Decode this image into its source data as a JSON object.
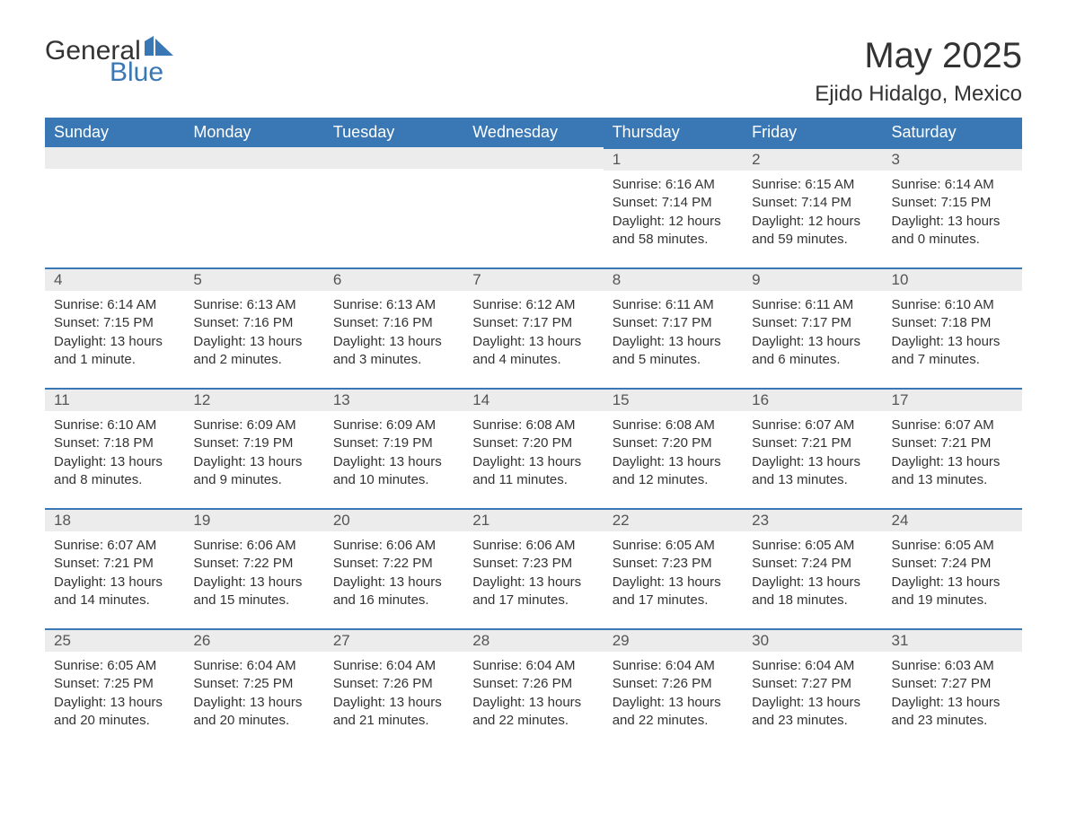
{
  "logo": {
    "text1": "General",
    "text2": "Blue",
    "flag_color": "#3a78b5"
  },
  "header": {
    "month_title": "May 2025",
    "location": "Ejido Hidalgo, Mexico"
  },
  "colors": {
    "header_bg": "#3a78b5",
    "header_text": "#ffffff",
    "daynum_bg": "#ececec",
    "border_top": "#3a78b5",
    "body_text": "#333333"
  },
  "weekdays": [
    "Sunday",
    "Monday",
    "Tuesday",
    "Wednesday",
    "Thursday",
    "Friday",
    "Saturday"
  ],
  "weeks": [
    [
      {
        "empty": true
      },
      {
        "empty": true
      },
      {
        "empty": true
      },
      {
        "empty": true
      },
      {
        "day": "1",
        "sunrise": "Sunrise: 6:16 AM",
        "sunset": "Sunset: 7:14 PM",
        "daylight1": "Daylight: 12 hours",
        "daylight2": "and 58 minutes."
      },
      {
        "day": "2",
        "sunrise": "Sunrise: 6:15 AM",
        "sunset": "Sunset: 7:14 PM",
        "daylight1": "Daylight: 12 hours",
        "daylight2": "and 59 minutes."
      },
      {
        "day": "3",
        "sunrise": "Sunrise: 6:14 AM",
        "sunset": "Sunset: 7:15 PM",
        "daylight1": "Daylight: 13 hours",
        "daylight2": "and 0 minutes."
      }
    ],
    [
      {
        "day": "4",
        "sunrise": "Sunrise: 6:14 AM",
        "sunset": "Sunset: 7:15 PM",
        "daylight1": "Daylight: 13 hours",
        "daylight2": "and 1 minute."
      },
      {
        "day": "5",
        "sunrise": "Sunrise: 6:13 AM",
        "sunset": "Sunset: 7:16 PM",
        "daylight1": "Daylight: 13 hours",
        "daylight2": "and 2 minutes."
      },
      {
        "day": "6",
        "sunrise": "Sunrise: 6:13 AM",
        "sunset": "Sunset: 7:16 PM",
        "daylight1": "Daylight: 13 hours",
        "daylight2": "and 3 minutes."
      },
      {
        "day": "7",
        "sunrise": "Sunrise: 6:12 AM",
        "sunset": "Sunset: 7:17 PM",
        "daylight1": "Daylight: 13 hours",
        "daylight2": "and 4 minutes."
      },
      {
        "day": "8",
        "sunrise": "Sunrise: 6:11 AM",
        "sunset": "Sunset: 7:17 PM",
        "daylight1": "Daylight: 13 hours",
        "daylight2": "and 5 minutes."
      },
      {
        "day": "9",
        "sunrise": "Sunrise: 6:11 AM",
        "sunset": "Sunset: 7:17 PM",
        "daylight1": "Daylight: 13 hours",
        "daylight2": "and 6 minutes."
      },
      {
        "day": "10",
        "sunrise": "Sunrise: 6:10 AM",
        "sunset": "Sunset: 7:18 PM",
        "daylight1": "Daylight: 13 hours",
        "daylight2": "and 7 minutes."
      }
    ],
    [
      {
        "day": "11",
        "sunrise": "Sunrise: 6:10 AM",
        "sunset": "Sunset: 7:18 PM",
        "daylight1": "Daylight: 13 hours",
        "daylight2": "and 8 minutes."
      },
      {
        "day": "12",
        "sunrise": "Sunrise: 6:09 AM",
        "sunset": "Sunset: 7:19 PM",
        "daylight1": "Daylight: 13 hours",
        "daylight2": "and 9 minutes."
      },
      {
        "day": "13",
        "sunrise": "Sunrise: 6:09 AM",
        "sunset": "Sunset: 7:19 PM",
        "daylight1": "Daylight: 13 hours",
        "daylight2": "and 10 minutes."
      },
      {
        "day": "14",
        "sunrise": "Sunrise: 6:08 AM",
        "sunset": "Sunset: 7:20 PM",
        "daylight1": "Daylight: 13 hours",
        "daylight2": "and 11 minutes."
      },
      {
        "day": "15",
        "sunrise": "Sunrise: 6:08 AM",
        "sunset": "Sunset: 7:20 PM",
        "daylight1": "Daylight: 13 hours",
        "daylight2": "and 12 minutes."
      },
      {
        "day": "16",
        "sunrise": "Sunrise: 6:07 AM",
        "sunset": "Sunset: 7:21 PM",
        "daylight1": "Daylight: 13 hours",
        "daylight2": "and 13 minutes."
      },
      {
        "day": "17",
        "sunrise": "Sunrise: 6:07 AM",
        "sunset": "Sunset: 7:21 PM",
        "daylight1": "Daylight: 13 hours",
        "daylight2": "and 13 minutes."
      }
    ],
    [
      {
        "day": "18",
        "sunrise": "Sunrise: 6:07 AM",
        "sunset": "Sunset: 7:21 PM",
        "daylight1": "Daylight: 13 hours",
        "daylight2": "and 14 minutes."
      },
      {
        "day": "19",
        "sunrise": "Sunrise: 6:06 AM",
        "sunset": "Sunset: 7:22 PM",
        "daylight1": "Daylight: 13 hours",
        "daylight2": "and 15 minutes."
      },
      {
        "day": "20",
        "sunrise": "Sunrise: 6:06 AM",
        "sunset": "Sunset: 7:22 PM",
        "daylight1": "Daylight: 13 hours",
        "daylight2": "and 16 minutes."
      },
      {
        "day": "21",
        "sunrise": "Sunrise: 6:06 AM",
        "sunset": "Sunset: 7:23 PM",
        "daylight1": "Daylight: 13 hours",
        "daylight2": "and 17 minutes."
      },
      {
        "day": "22",
        "sunrise": "Sunrise: 6:05 AM",
        "sunset": "Sunset: 7:23 PM",
        "daylight1": "Daylight: 13 hours",
        "daylight2": "and 17 minutes."
      },
      {
        "day": "23",
        "sunrise": "Sunrise: 6:05 AM",
        "sunset": "Sunset: 7:24 PM",
        "daylight1": "Daylight: 13 hours",
        "daylight2": "and 18 minutes."
      },
      {
        "day": "24",
        "sunrise": "Sunrise: 6:05 AM",
        "sunset": "Sunset: 7:24 PM",
        "daylight1": "Daylight: 13 hours",
        "daylight2": "and 19 minutes."
      }
    ],
    [
      {
        "day": "25",
        "sunrise": "Sunrise: 6:05 AM",
        "sunset": "Sunset: 7:25 PM",
        "daylight1": "Daylight: 13 hours",
        "daylight2": "and 20 minutes."
      },
      {
        "day": "26",
        "sunrise": "Sunrise: 6:04 AM",
        "sunset": "Sunset: 7:25 PM",
        "daylight1": "Daylight: 13 hours",
        "daylight2": "and 20 minutes."
      },
      {
        "day": "27",
        "sunrise": "Sunrise: 6:04 AM",
        "sunset": "Sunset: 7:26 PM",
        "daylight1": "Daylight: 13 hours",
        "daylight2": "and 21 minutes."
      },
      {
        "day": "28",
        "sunrise": "Sunrise: 6:04 AM",
        "sunset": "Sunset: 7:26 PM",
        "daylight1": "Daylight: 13 hours",
        "daylight2": "and 22 minutes."
      },
      {
        "day": "29",
        "sunrise": "Sunrise: 6:04 AM",
        "sunset": "Sunset: 7:26 PM",
        "daylight1": "Daylight: 13 hours",
        "daylight2": "and 22 minutes."
      },
      {
        "day": "30",
        "sunrise": "Sunrise: 6:04 AM",
        "sunset": "Sunset: 7:27 PM",
        "daylight1": "Daylight: 13 hours",
        "daylight2": "and 23 minutes."
      },
      {
        "day": "31",
        "sunrise": "Sunrise: 6:03 AM",
        "sunset": "Sunset: 7:27 PM",
        "daylight1": "Daylight: 13 hours",
        "daylight2": "and 23 minutes."
      }
    ]
  ]
}
